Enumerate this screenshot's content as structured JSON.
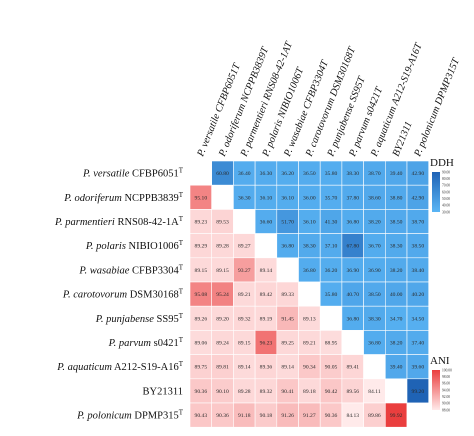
{
  "chart_data": {
    "type": "heatmap",
    "rows": [
      {
        "name": "P. versatile",
        "strain": "CFBP6051",
        "sup": "T"
      },
      {
        "name": "P. odoriferum",
        "strain": "NCPPB3839",
        "sup": "T"
      },
      {
        "name": "P. parmentieri",
        "strain": "RNS08-42-1A",
        "sup": "T"
      },
      {
        "name": "P. polaris",
        "strain": "NIBIO1006",
        "sup": "T"
      },
      {
        "name": "P. wasabiae",
        "strain": "CFBP3304",
        "sup": "T"
      },
      {
        "name": "P. carotovorum",
        "strain": "DSM30168",
        "sup": "T"
      },
      {
        "name": "P. punjabense",
        "strain": "SS95",
        "sup": "T"
      },
      {
        "name": "P. parvum",
        "strain": "s0421",
        "sup": "T"
      },
      {
        "name": "P. aquaticum",
        "strain": "A212-S19-A16",
        "sup": "T"
      },
      {
        "name": "",
        "strain": "BY21311",
        "sup": ""
      },
      {
        "name": "P. polonicum",
        "strain": "DPMP315",
        "sup": "T"
      }
    ],
    "columns": [
      "P. versatile CFBP6051T",
      "P. odoriferum NCPPB3839T",
      "P. parmentieri RNS08-42-1AT",
      "P. polaris NIBIO1006T",
      "P. wasabiae CFBP3304T",
      "P. carotovorum DSM30168T",
      "P. punjabense SS95T",
      "P. parvum s0421T",
      "P. aquaticum A212-S19-A16T",
      "BY21311",
      "P. polonicum DPMP315T"
    ],
    "upper_metric": "DDH",
    "lower_metric": "ANI",
    "values": [
      [
        "",
        "60.80",
        "36.40",
        "36.30",
        "36.20",
        "36.50",
        "35.80",
        "38.30",
        "38.70",
        "39.40",
        "42.90"
      ],
      [
        "95.10",
        "",
        "36.30",
        "36.10",
        "36.10",
        "36.00",
        "35.70",
        "37.80",
        "38.60",
        "38.80",
        "42.90"
      ],
      [
        "89.23",
        "89.53",
        "",
        "36.60",
        "51.70",
        "36.10",
        "41.30",
        "36.80",
        "38.20",
        "38.50",
        "38.70"
      ],
      [
        "89.29",
        "89.28",
        "89.27",
        "",
        "36.80",
        "38.30",
        "37.10",
        "67.80",
        "36.70",
        "38.30",
        "38.50"
      ],
      [
        "89.15",
        "89.15",
        "93.27",
        "89.14",
        "",
        "36.80",
        "36.20",
        "36.90",
        "36.90",
        "38.20",
        "38.40"
      ],
      [
        "95.08",
        "95.24",
        "89.21",
        "89.42",
        "89.33",
        "",
        "35.80",
        "40.70",
        "38.50",
        "40.00",
        "40.20"
      ],
      [
        "89.26",
        "89.20",
        "89.32",
        "89.19",
        "91.45",
        "89.13",
        "",
        "36.80",
        "38.30",
        "34.70",
        "34.50"
      ],
      [
        "89.06",
        "89.24",
        "89.15",
        "96.23",
        "89.25",
        "89.21",
        "88.95",
        "",
        "36.80",
        "38.20",
        "37.40"
      ],
      [
        "89.75",
        "89.81",
        "89.14",
        "89.36",
        "89.14",
        "90.34",
        "90.05",
        "89.41",
        "",
        "39.40",
        "39.60"
      ],
      [
        "90.36",
        "90.10",
        "89.28",
        "89.32",
        "90.41",
        "89.18",
        "90.42",
        "89.56",
        "84.11",
        "",
        "99.20"
      ],
      [
        "90.43",
        "90.36",
        "91.18",
        "90.18",
        "91.26",
        "91.27",
        "90.36",
        "84.13",
        "89.86",
        "99.92",
        ""
      ]
    ],
    "ddh_scale": {
      "label": "DDH",
      "ticks": [
        "90.00",
        "80.00",
        "70.00",
        "60.00",
        "50.00",
        "40.00",
        "30.00"
      ]
    },
    "ani_scale": {
      "label": "ANI",
      "ticks": [
        "100.00",
        "98.00",
        "96.00",
        "94.00",
        "92.00",
        "90.00",
        "88.00"
      ]
    },
    "colors": {
      "ddh_high": "#1f63b5",
      "ddh_low": "#5ab5f5",
      "ani_high": "#ea3d3d",
      "ani_low": "#ffeaea",
      "diagonal": "#ffffff"
    }
  }
}
